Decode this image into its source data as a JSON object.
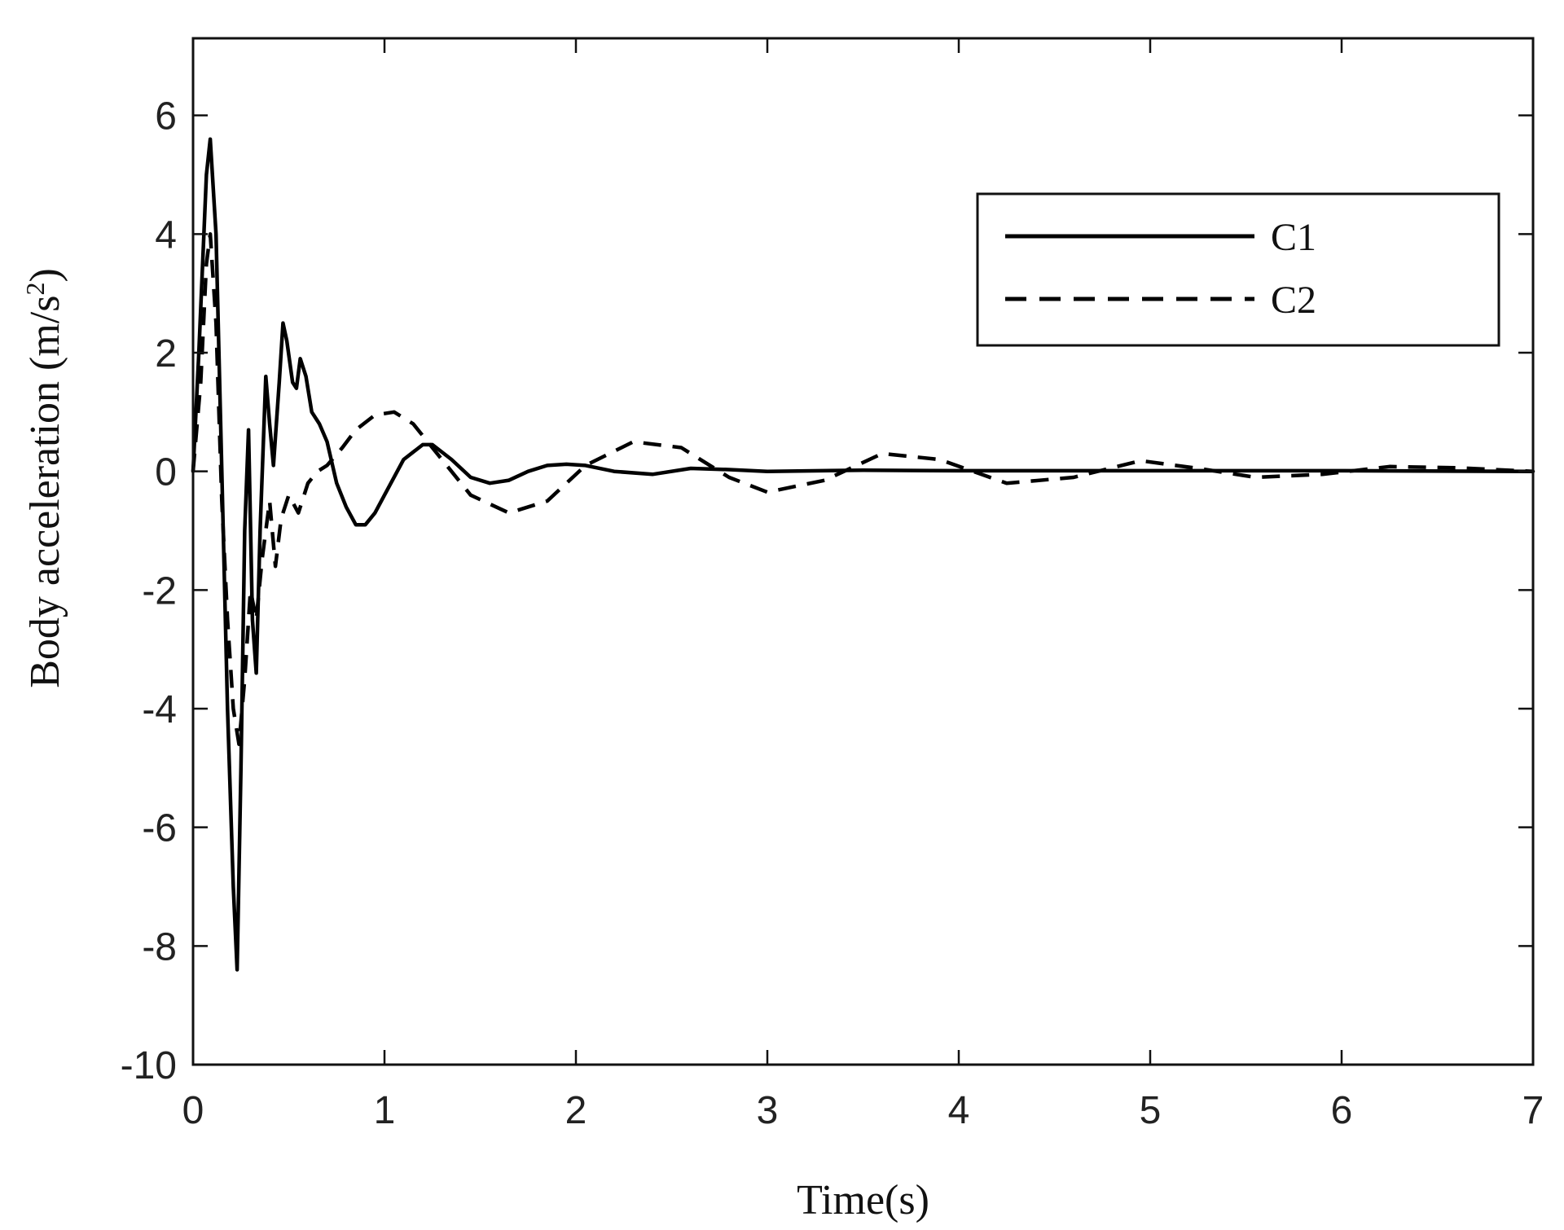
{
  "chart_data": {
    "type": "line",
    "title": "",
    "xlabel": "Time(s)",
    "ylabel": {
      "text": "Body acceleration (m/s",
      "superscript": "2",
      "close": ")"
    },
    "xlim": [
      0,
      7
    ],
    "ylim": [
      -10,
      7.3
    ],
    "xticks": [
      0,
      1,
      2,
      3,
      4,
      5,
      6,
      7
    ],
    "yticks": [
      -10,
      -8,
      -6,
      -4,
      -2,
      0,
      2,
      4,
      6
    ],
    "xtick_labels": [
      "0",
      "1",
      "2",
      "3",
      "4",
      "5",
      "6",
      "7"
    ],
    "ytick_labels": [
      "-10",
      "-8",
      "-6",
      "-4",
      "-2",
      "0",
      "2",
      "4",
      "6"
    ],
    "grid": false,
    "legend_position": "top-right",
    "series": [
      {
        "name": "C1",
        "style": "solid",
        "color": "#000000",
        "x": [
          0,
          0.03,
          0.07,
          0.09,
          0.12,
          0.15,
          0.18,
          0.21,
          0.23,
          0.25,
          0.27,
          0.29,
          0.31,
          0.33,
          0.35,
          0.38,
          0.4,
          0.42,
          0.45,
          0.47,
          0.49,
          0.52,
          0.54,
          0.56,
          0.59,
          0.62,
          0.66,
          0.7,
          0.75,
          0.8,
          0.85,
          0.9,
          0.95,
          1.0,
          1.1,
          1.2,
          1.25,
          1.35,
          1.45,
          1.55,
          1.65,
          1.75,
          1.85,
          1.95,
          2.05,
          2.2,
          2.4,
          2.6,
          2.8,
          3.0,
          3.5,
          4.0,
          5.0,
          6.0,
          7.0
        ],
        "y": [
          0,
          2.0,
          5.0,
          5.6,
          4.0,
          0.0,
          -4.0,
          -7.0,
          -8.4,
          -5.0,
          -1.0,
          0.7,
          -2.5,
          -3.4,
          -1.0,
          1.6,
          0.8,
          0.1,
          1.5,
          2.5,
          2.2,
          1.5,
          1.4,
          1.9,
          1.6,
          1.0,
          0.8,
          0.5,
          -0.2,
          -0.6,
          -0.9,
          -0.9,
          -0.7,
          -0.4,
          0.2,
          0.45,
          0.45,
          0.2,
          -0.1,
          -0.2,
          -0.15,
          0.0,
          0.1,
          0.12,
          0.1,
          0.0,
          -0.05,
          0.05,
          0.03,
          0.0,
          0.02,
          0.01,
          0.01,
          0.01,
          0.0
        ]
      },
      {
        "name": "C2",
        "style": "dashed",
        "color": "#000000",
        "x": [
          0,
          0.04,
          0.07,
          0.09,
          0.12,
          0.15,
          0.18,
          0.21,
          0.24,
          0.27,
          0.3,
          0.33,
          0.36,
          0.4,
          0.43,
          0.46,
          0.5,
          0.55,
          0.6,
          0.65,
          0.7,
          0.78,
          0.85,
          0.95,
          1.05,
          1.15,
          1.3,
          1.45,
          1.65,
          1.85,
          2.05,
          2.3,
          2.55,
          2.8,
          3.0,
          3.3,
          3.6,
          3.9,
          4.25,
          4.6,
          4.95,
          5.25,
          5.55,
          5.9,
          6.25,
          6.6,
          7.0
        ],
        "y": [
          0,
          1.5,
          3.5,
          4.0,
          2.5,
          -0.5,
          -2.5,
          -4.0,
          -4.6,
          -3.5,
          -2.0,
          -2.5,
          -1.5,
          -0.5,
          -1.6,
          -0.8,
          -0.4,
          -0.7,
          -0.2,
          0.0,
          0.1,
          0.4,
          0.7,
          0.95,
          1.0,
          0.8,
          0.2,
          -0.4,
          -0.7,
          -0.5,
          0.1,
          0.5,
          0.4,
          -0.1,
          -0.35,
          -0.15,
          0.3,
          0.2,
          -0.2,
          -0.1,
          0.18,
          0.05,
          -0.1,
          -0.05,
          0.08,
          0.06,
          0.0
        ]
      }
    ]
  }
}
